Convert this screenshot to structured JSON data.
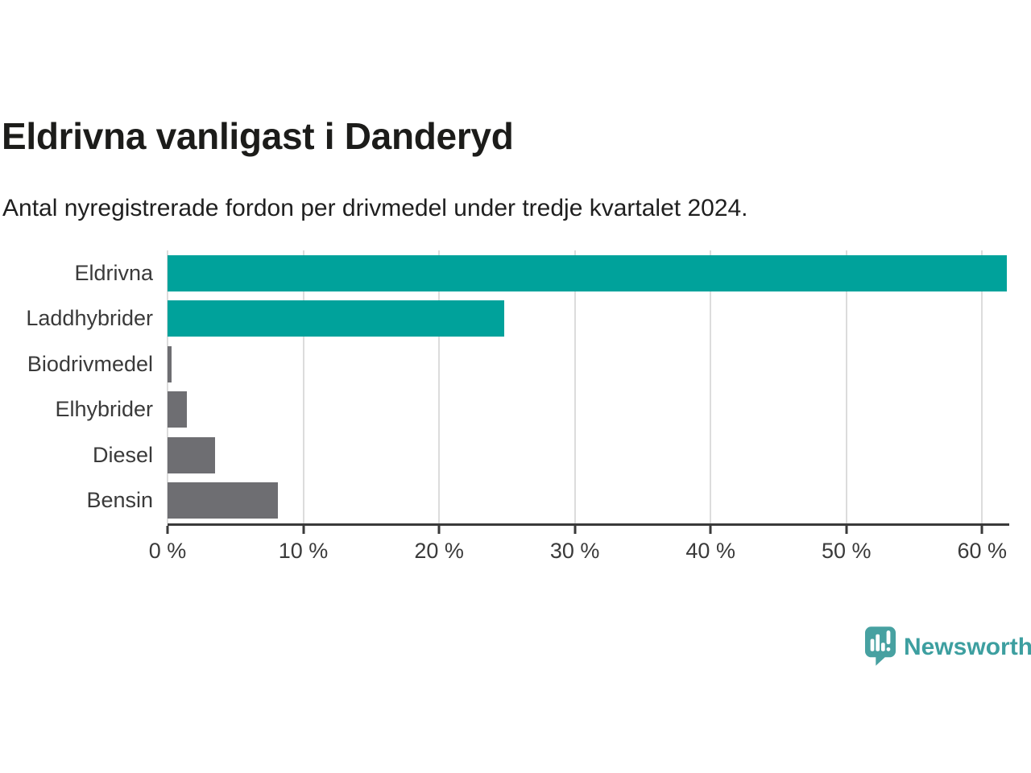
{
  "header": {
    "title": "Eldrivna vanligast i Danderyd",
    "subtitle": "Antal nyregistrerade fordon per drivmedel under tredje kvartalet 2024."
  },
  "chart_data": {
    "type": "bar",
    "orientation": "horizontal",
    "title": "Eldrivna vanligast i Danderyd",
    "subtitle": "Antal nyregistrerade fordon per drivmedel under tredje kvartalet 2024.",
    "categories": [
      "Eldrivna",
      "Laddhybrider",
      "Biodrivmedel",
      "Elhybrider",
      "Diesel",
      "Bensin"
    ],
    "values": [
      61.8,
      24.8,
      0.3,
      1.4,
      3.5,
      8.1
    ],
    "unit": "%",
    "bar_colors": [
      "#00a29b",
      "#00a29b",
      "#6e6e72",
      "#6e6e72",
      "#6e6e72",
      "#6e6e72"
    ],
    "xlim": [
      0,
      62
    ],
    "x_ticks": [
      0,
      10,
      20,
      30,
      40,
      50,
      60
    ],
    "x_tick_labels": [
      "0 %",
      "10 %",
      "20 %",
      "30 %",
      "40 %",
      "50 %",
      "60 %"
    ],
    "xlabel": "",
    "ylabel": "",
    "grid": "vertical",
    "legend": "none",
    "colors": {
      "accent": "#00a29b",
      "neutral": "#6e6e72",
      "grid": "#dcdcdc",
      "axis": "#3a3a3a",
      "text": "#3a3a3a"
    }
  },
  "branding": {
    "logo_text": "Newsworthy",
    "logo_icon": "newsworthy-speech-bubble-chart-icon",
    "brand_color": "#3d9fa0",
    "icon_color": "#47a1a1"
  }
}
